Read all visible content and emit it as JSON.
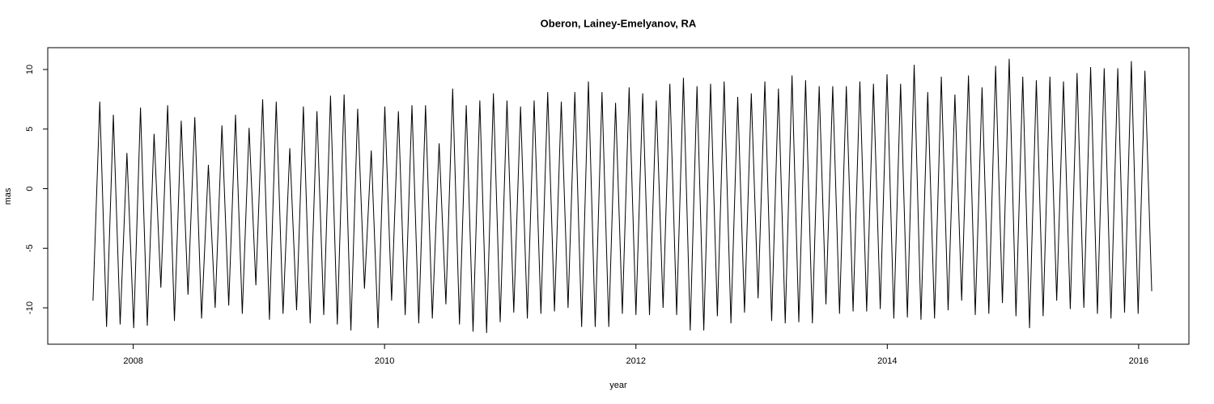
{
  "chart_data": {
    "type": "line",
    "title": "Oberon, Lainey-Emelyanov, RA",
    "x_label": "year",
    "y_label": "mas",
    "x": [
      2007.68,
      2007.734,
      2007.788,
      2007.842,
      2007.896,
      2007.95,
      2008.004,
      2008.058,
      2008.112,
      2008.166,
      2008.22,
      2008.274,
      2008.328,
      2008.382,
      2008.436,
      2008.49,
      2008.544,
      2008.598,
      2008.652,
      2008.706,
      2008.76,
      2008.814,
      2008.868,
      2008.922,
      2008.976,
      2009.03,
      2009.084,
      2009.138,
      2009.192,
      2009.246,
      2009.3,
      2009.354,
      2009.408,
      2009.462,
      2009.516,
      2009.57,
      2009.624,
      2009.678,
      2009.732,
      2009.786,
      2009.84,
      2009.894,
      2009.948,
      2010.002,
      2010.056,
      2010.11,
      2010.164,
      2010.218,
      2010.272,
      2010.326,
      2010.38,
      2010.434,
      2010.488,
      2010.542,
      2010.596,
      2010.65,
      2010.704,
      2010.758,
      2010.812,
      2010.866,
      2010.92,
      2010.974,
      2011.028,
      2011.082,
      2011.136,
      2011.19,
      2011.244,
      2011.298,
      2011.352,
      2011.406,
      2011.46,
      2011.514,
      2011.568,
      2011.622,
      2011.676,
      2011.73,
      2011.784,
      2011.838,
      2011.892,
      2011.946,
      2012.0,
      2012.054,
      2012.108,
      2012.162,
      2012.216,
      2012.27,
      2012.324,
      2012.378,
      2012.432,
      2012.486,
      2012.54,
      2012.594,
      2012.648,
      2012.702,
      2012.756,
      2012.81,
      2012.864,
      2012.918,
      2012.972,
      2013.026,
      2013.08,
      2013.134,
      2013.188,
      2013.242,
      2013.296,
      2013.35,
      2013.404,
      2013.458,
      2013.512,
      2013.566,
      2013.62,
      2013.674,
      2013.728,
      2013.782,
      2013.836,
      2013.89,
      2013.944,
      2013.998,
      2014.052,
      2014.106,
      2014.16,
      2014.214,
      2014.268,
      2014.322,
      2014.376,
      2014.43,
      2014.484,
      2014.538,
      2014.592,
      2014.646,
      2014.7,
      2014.754,
      2014.808,
      2014.862,
      2014.916,
      2014.97,
      2015.024,
      2015.078,
      2015.132,
      2015.186,
      2015.24,
      2015.294,
      2015.348,
      2015.402,
      2015.456,
      2015.51,
      2015.564,
      2015.618,
      2015.672,
      2015.726,
      2015.78,
      2015.834,
      2015.888,
      2015.942,
      2015.996,
      2016.05,
      2016.104
    ],
    "series": [
      {
        "color": "#000000",
        "values": [
          -9.4,
          7.3,
          -11.6,
          6.2,
          -11.4,
          3.0,
          -11.7,
          6.8,
          -11.5,
          4.6,
          -8.3,
          7.0,
          -11.1,
          5.7,
          -8.9,
          6.0,
          -10.9,
          2.0,
          -10.0,
          5.3,
          -9.8,
          6.2,
          -10.5,
          5.1,
          -8.1,
          7.5,
          -11.0,
          7.3,
          -10.5,
          3.4,
          -10.2,
          6.9,
          -11.3,
          6.5,
          -10.6,
          7.8,
          -11.4,
          7.9,
          -11.9,
          6.7,
          -8.4,
          3.2,
          -11.7,
          6.9,
          -9.4,
          6.5,
          -10.6,
          7.0,
          -11.3,
          7.0,
          -10.9,
          3.8,
          -9.7,
          8.4,
          -11.4,
          7.0,
          -12.0,
          7.4,
          -12.1,
          8.0,
          -11.2,
          7.4,
          -10.4,
          6.9,
          -10.9,
          7.4,
          -10.5,
          8.1,
          -10.3,
          7.3,
          -10.0,
          8.1,
          -11.6,
          9.0,
          -11.6,
          8.1,
          -11.6,
          7.2,
          -10.5,
          8.5,
          -10.6,
          8.0,
          -10.6,
          7.4,
          -10.0,
          8.8,
          -10.6,
          9.3,
          -11.9,
          8.6,
          -11.9,
          8.8,
          -10.7,
          9.0,
          -11.3,
          7.7,
          -10.4,
          8.0,
          -9.2,
          9.0,
          -11.1,
          8.4,
          -11.3,
          9.5,
          -11.2,
          9.1,
          -11.3,
          8.6,
          -9.7,
          8.6,
          -10.5,
          8.6,
          -10.3,
          9.0,
          -10.3,
          8.8,
          -10.1,
          9.6,
          -10.9,
          8.8,
          -10.8,
          10.4,
          -11.0,
          8.1,
          -10.9,
          9.4,
          -10.2,
          7.9,
          -9.4,
          9.5,
          -10.6,
          8.5,
          -10.5,
          10.3,
          -9.6,
          10.9,
          -10.7,
          9.4,
          -11.7,
          9.1,
          -10.7,
          9.4,
          -9.4,
          9.0,
          -10.1,
          9.7,
          -10.0,
          10.2,
          -10.5,
          10.1,
          -10.9,
          10.1,
          -10.4,
          10.7,
          -10.5,
          9.9,
          -8.6
        ]
      }
    ],
    "xlim": [
      2007.32,
      2016.4
    ],
    "ylim": [
      -13.05,
      11.83
    ],
    "xticks": [
      2008,
      2010,
      2012,
      2014,
      2016
    ],
    "yticks": [
      -10,
      -5,
      0,
      5,
      10
    ]
  }
}
